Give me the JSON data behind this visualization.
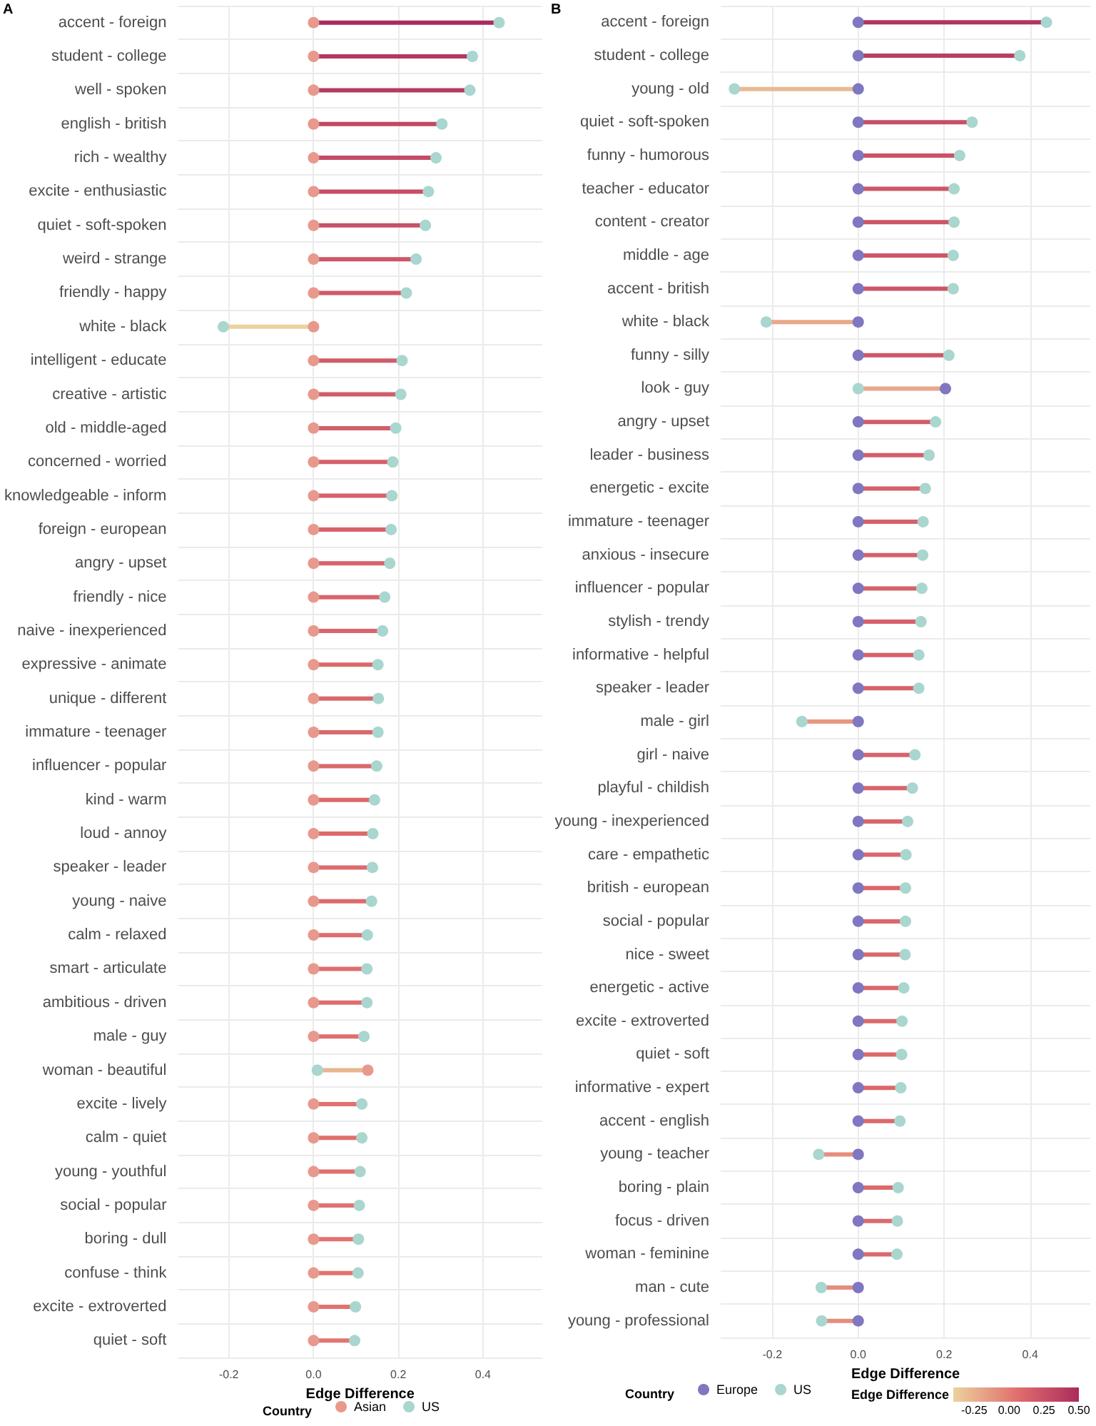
{
  "chart_data": [
    {
      "type": "scatter",
      "title": "A",
      "xlabel": "Edge Difference",
      "legend_title": "Country",
      "orientation": "horizontal",
      "grid": true,
      "legend": "bottom",
      "marker": "circle",
      "categories": [
        "accent - foreign",
        "student - college",
        "well - spoken",
        "english - british",
        "rich - wealthy",
        "excite - enthusiastic",
        "quiet - soft-spoken",
        "weird - strange",
        "friendly - happy",
        "white - black",
        "intelligent - educate",
        "creative - artistic",
        "old - middle-aged",
        "concerned - worried",
        "knowledgeable - inform",
        "foreign - european",
        "angry - upset",
        "friendly - nice",
        "naive - inexperienced",
        "expressive - animate",
        "unique - different",
        "immature - teenager",
        "influencer - popular",
        "kind - warm",
        "loud - annoy",
        "speaker - leader",
        "young - naive",
        "calm - relaxed",
        "smart - articulate",
        "ambitious - driven",
        "male - guy",
        "woman - beautiful",
        "excite - lively",
        "calm - quiet",
        "young - youthful",
        "social - popular",
        "boring - dull",
        "confuse - think",
        "excite - extroverted",
        "quiet - soft"
      ],
      "xlim": [
        -0.32,
        0.54
      ],
      "xticks": [
        -0.2,
        {
          "value": 0,
          "label": "0.0"
        },
        0.2,
        0.4
      ],
      "series": [
        {
          "name": "Asian",
          "color": "#e8998d",
          "values": [
            0,
            0,
            0,
            0,
            0,
            0,
            0,
            0,
            0,
            0,
            0,
            0,
            0,
            0,
            0,
            0,
            0,
            0,
            0,
            0,
            0,
            0,
            0,
            0,
            0,
            0,
            0,
            0,
            0,
            0,
            0,
            0.128,
            0,
            0,
            0,
            0,
            0,
            0,
            0,
            0
          ]
        },
        {
          "name": "US",
          "color": "#a9d6cf",
          "values": [
            0.438,
            0.375,
            0.369,
            0.303,
            0.289,
            0.271,
            0.264,
            0.242,
            0.219,
            -0.213,
            0.209,
            0.206,
            0.194,
            0.187,
            0.185,
            0.183,
            0.18,
            0.168,
            0.163,
            0.152,
            0.153,
            0.152,
            0.149,
            0.144,
            0.14,
            0.139,
            0.137,
            0.127,
            0.126,
            0.126,
            0.119,
            0.009,
            0.114,
            0.114,
            0.11,
            0.108,
            0.106,
            0.105,
            0.099,
            0.097
          ]
        }
      ]
    },
    {
      "type": "scatter",
      "title": "B",
      "xlabel": "Edge Difference",
      "legend_title": "Country",
      "clabel": "Edge Difference",
      "orientation": "horizontal",
      "grid": true,
      "legend": "bottom",
      "marker": "circle",
      "categories": [
        "accent - foreign",
        "student - college",
        "young - old",
        "quiet - soft-spoken",
        "funny - humorous",
        "teacher - educator",
        "content - creator",
        "middle - age",
        "accent - british",
        "white - black",
        "funny - silly",
        "look - guy",
        "angry - upset",
        "leader - business",
        "energetic - excite",
        "immature - teenager",
        "anxious - insecure",
        "influencer - popular",
        "stylish - trendy",
        "informative - helpful",
        "speaker - leader",
        "male - girl",
        "girl - naive",
        "playful - childish",
        "young - inexperienced",
        "care - empathetic",
        "british - european",
        "social - popular",
        "nice - sweet",
        "energetic - active",
        "excite - extroverted",
        "quiet - soft",
        "informative - expert",
        "accent - english",
        "young - teacher",
        "boring - plain",
        "focus - driven",
        "woman - feminine",
        "man - cute",
        "young - professional"
      ],
      "xlim": [
        -0.32,
        0.54
      ],
      "xticks": [
        -0.2,
        {
          "value": 0,
          "label": "0.0"
        },
        0.2,
        0.4
      ],
      "clim": [
        -0.4,
        0.5
      ],
      "cticks": [
        {
          "value": -0.25,
          "label": "-0.25"
        },
        {
          "value": 0,
          "label": "0.00"
        },
        {
          "value": 0.25,
          "label": "0.25"
        },
        {
          "value": 0.5,
          "label": "0.50"
        }
      ],
      "series": [
        {
          "name": "Europe",
          "color": "#7f77c1",
          "values": [
            0,
            0,
            0,
            0,
            0,
            0,
            0,
            0,
            0,
            0,
            0,
            0.203,
            0,
            0,
            0,
            0,
            0,
            0,
            0,
            0,
            0,
            0,
            0,
            0,
            0,
            0,
            0,
            0,
            0,
            0,
            0,
            0,
            0,
            0,
            0,
            0,
            0,
            0,
            0,
            0
          ]
        },
        {
          "name": "US",
          "color": "#a9d6cf",
          "values": [
            0.438,
            0.376,
            -0.288,
            0.265,
            0.236,
            0.223,
            0.223,
            0.221,
            0.221,
            -0.214,
            0.211,
            0,
            0.18,
            0.165,
            0.156,
            0.151,
            0.15,
            0.148,
            0.146,
            0.141,
            0.141,
            -0.131,
            0.132,
            0.126,
            0.115,
            0.111,
            0.11,
            0.11,
            0.109,
            0.106,
            0.102,
            0.101,
            0.099,
            0.097,
            -0.092,
            0.093,
            0.091,
            0.09,
            -0.086,
            -0.085
          ]
        }
      ]
    }
  ]
}
